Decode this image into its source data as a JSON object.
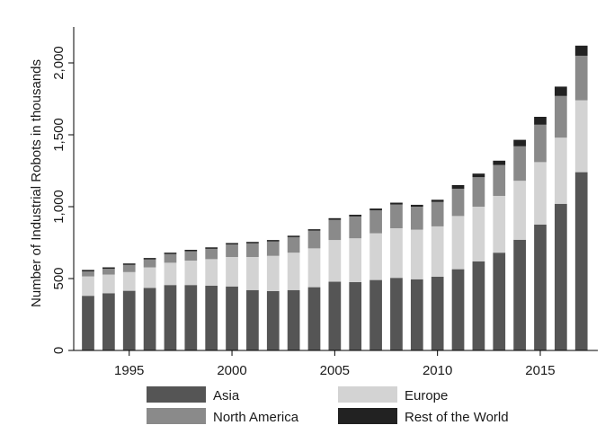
{
  "chart_data": {
    "type": "bar",
    "stacked": true,
    "title": "",
    "xlabel": "",
    "ylabel": "Number of Industrial Robots in thousands",
    "x": [
      1993,
      1994,
      1995,
      1996,
      1997,
      1998,
      1999,
      2000,
      2001,
      2002,
      2003,
      2004,
      2005,
      2006,
      2007,
      2008,
      2009,
      2010,
      2011,
      2012,
      2013,
      2014,
      2015,
      2016,
      2017
    ],
    "xlim": [
      1992.3,
      2017.8
    ],
    "xticks": [
      1995,
      2000,
      2005,
      2010,
      2015
    ],
    "xtick_labels": [
      "1995",
      "2000",
      "2005",
      "2010",
      "2015"
    ],
    "ylim": [
      0,
      2200
    ],
    "yticks": [
      0,
      500,
      1000,
      1500,
      2000
    ],
    "ytick_labels": [
      "0",
      "500",
      "1,000",
      "1,500",
      "2,000"
    ],
    "grid": false,
    "legend": {
      "placement": "bottom",
      "columns": 2,
      "entries": [
        "Asia",
        "Europe",
        "North America",
        "Rest of the World"
      ]
    },
    "series": [
      {
        "name": "Asia",
        "color": "#555555",
        "values": [
          380,
          398,
          415,
          435,
          455,
          455,
          450,
          445,
          420,
          413,
          420,
          440,
          478,
          475,
          490,
          505,
          495,
          513,
          565,
          620,
          680,
          770,
          875,
          1020,
          1240
        ]
      },
      {
        "name": "Europe",
        "color": "#d3d3d3",
        "values": [
          135,
          130,
          130,
          143,
          155,
          170,
          185,
          205,
          230,
          245,
          260,
          270,
          290,
          305,
          325,
          345,
          345,
          350,
          370,
          380,
          395,
          410,
          435,
          460,
          500
        ]
      },
      {
        "name": "North America",
        "color": "#8a8a8a",
        "values": [
          35,
          40,
          50,
          55,
          60,
          65,
          72,
          87,
          95,
          100,
          108,
          123,
          140,
          152,
          160,
          165,
          160,
          170,
          190,
          205,
          215,
          240,
          260,
          290,
          310
        ]
      },
      {
        "name": "Rest of the World",
        "color": "#222222",
        "values": [
          10,
          10,
          10,
          10,
          10,
          10,
          10,
          10,
          10,
          10,
          10,
          10,
          12,
          12,
          12,
          13,
          13,
          15,
          25,
          25,
          30,
          45,
          55,
          65,
          70
        ]
      }
    ]
  }
}
